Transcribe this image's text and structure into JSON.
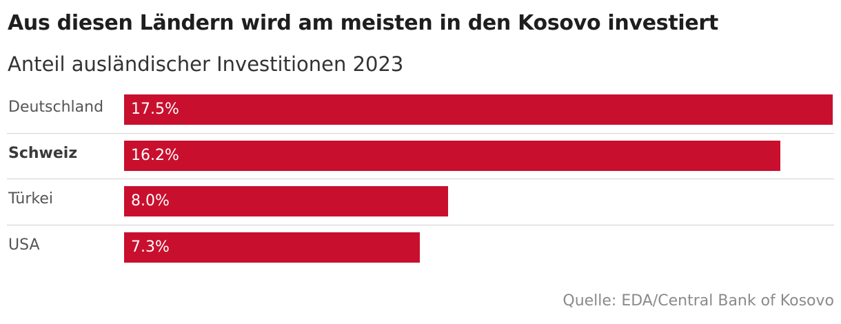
{
  "chart_data": {
    "type": "bar",
    "orientation": "horizontal",
    "title": "Aus diesen Ländern wird am meisten in den Kosovo investiert",
    "subtitle": "Anteil ausländischer Investitionen 2023",
    "categories": [
      "Deutschland",
      "Schweiz",
      "Türkei",
      "USA"
    ],
    "values": [
      17.5,
      16.2,
      8.0,
      7.3
    ],
    "value_labels": [
      "17.5%",
      "16.2%",
      "8.0%",
      "7.3%"
    ],
    "highlighted_category": "Schweiz",
    "xlim": [
      0,
      17.5
    ],
    "bar_color": "#c8102e",
    "grid": false,
    "legend": "none",
    "source": "Quelle: EDA/Central Bank of Kosovo"
  }
}
